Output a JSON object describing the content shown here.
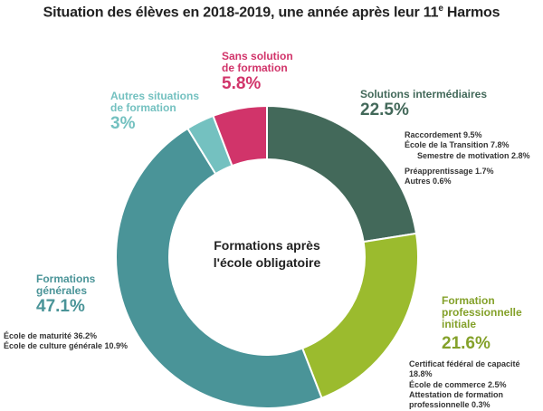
{
  "title_main": "Situation des élèves en 2018-2019, une année après leur 11",
  "title_sup": "e",
  "title_end": " Harmos",
  "center": {
    "line1": "Formations après",
    "line2": "l'école obligatoire"
  },
  "chart_data": {
    "type": "pie",
    "donut": true,
    "slices": [
      {
        "name_lines": [
          "Solutions intermédiaires"
        ],
        "value": 22.5,
        "value_label": "22.5%",
        "color": "#43695a",
        "breakdown": [
          {
            "label": "Raccordement 9.5%"
          },
          {
            "label": "École de la Transition 7.8%"
          },
          {
            "label": "Semestre de motivation 2.8%"
          },
          {
            "label": "Préapprentissage 1.7%"
          },
          {
            "label": "Autres 0.6%"
          }
        ]
      },
      {
        "name_lines": [
          "Formation",
          "professionnelle",
          "initiale"
        ],
        "value": 21.6,
        "value_label": "21.6%",
        "color": "#9bbb2e",
        "breakdown": [
          {
            "label": "Certificat fédéral de capacité 18.8%"
          },
          {
            "label": "École de commerce 2.5%"
          },
          {
            "label": "Attestation de formation"
          },
          {
            "label": "professionnelle 0.3%"
          }
        ]
      },
      {
        "name_lines": [
          "Formations",
          "générales"
        ],
        "value": 47.1,
        "value_label": "47.1%",
        "color": "#4a9498",
        "breakdown": [
          {
            "label": "École de maturité 36.2%"
          },
          {
            "label": "École de culture générale 10.9%"
          }
        ]
      },
      {
        "name_lines": [
          "Autres situations",
          "de formation"
        ],
        "value": 3,
        "value_label": "3%",
        "color": "#74c1c0",
        "breakdown": []
      },
      {
        "name_lines": [
          "Sans solution",
          "de formation"
        ],
        "value": 5.8,
        "value_label": "5.8%",
        "color": "#d1346a",
        "breakdown": []
      }
    ]
  }
}
